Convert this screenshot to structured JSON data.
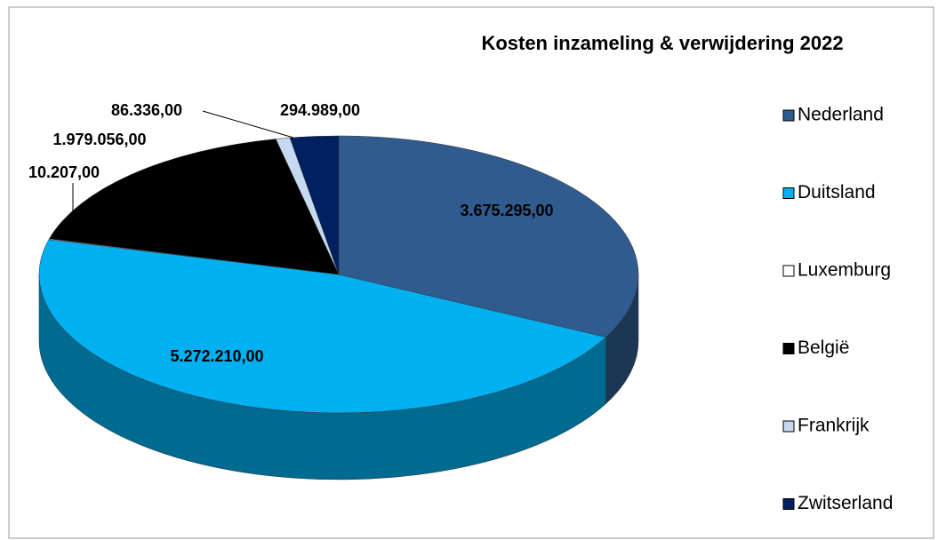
{
  "chart_data": {
    "type": "pie",
    "title": "Kosten inzameling & verwijdering 2022",
    "categories": [
      "Nederland",
      "Duitsland",
      "Luxemburg",
      "België",
      "Frankrijk",
      "Zwitserland"
    ],
    "values": [
      3675295,
      5272210,
      10207,
      1979056,
      86336,
      294989
    ],
    "value_labels": [
      "3.675.295,00",
      "5.272.210,00",
      "10.207,00",
      "1.979.056,00",
      "86.336,00",
      "294.989,00"
    ],
    "colors": [
      "#2f5b8f",
      "#00b0f0",
      "#ffffff",
      "#000000",
      "#c5d9f1",
      "#002060"
    ],
    "legend": "right"
  }
}
